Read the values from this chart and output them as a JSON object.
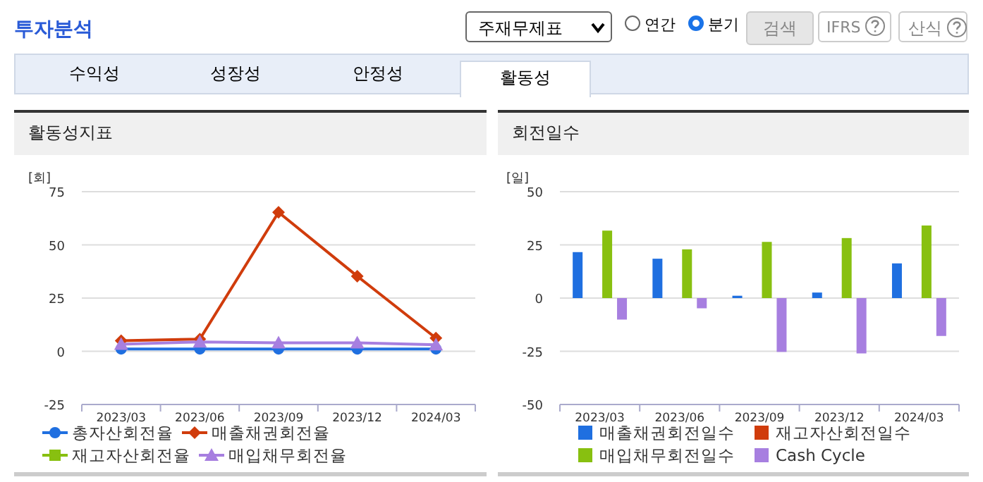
{
  "chart_data": [
    {
      "type": "line",
      "title": "활동성지표",
      "ylabel": "[회]",
      "annotations": [
        "투자분석",
        "주재무제표",
        "연간",
        "분기",
        "검색",
        "IFRS",
        "산식",
        "수익성",
        "성장성",
        "안정성",
        "활동성"
      ],
      "categories": [
        "2023/03",
        "2023/06",
        "2023/09",
        "2023/12",
        "2024/03"
      ],
      "ylim": [
        -25,
        75
      ],
      "yticks": [
        -25,
        0,
        25,
        50,
        75
      ],
      "grid": "y",
      "legend": "bottom",
      "series": [
        {
          "name": "총자산회전율",
          "color": "#1f6fe0",
          "marker": "circle",
          "values": [
            1.1,
            1.1,
            1.1,
            1.1,
            1.1
          ]
        },
        {
          "name": "매출채권회전율",
          "color": "#d03c0c",
          "marker": "diamond",
          "values": [
            5,
            5.7,
            65.3,
            35.3,
            6.2
          ]
        },
        {
          "name": "재고자산회전율",
          "color": "#88c010",
          "marker": "square",
          "values": [
            null,
            null,
            null,
            null,
            null
          ]
        },
        {
          "name": "매입채무회전율",
          "color": "#a77fe0",
          "marker": "triangle",
          "values": [
            3.3,
            4.4,
            4.0,
            4.0,
            3.1
          ]
        }
      ]
    },
    {
      "type": "bar",
      "title": "회전일수",
      "ylabel": "[일]",
      "categories": [
        "2023/03",
        "2023/06",
        "2023/09",
        "2023/12",
        "2024/03"
      ],
      "ylim": [
        -50,
        50
      ],
      "yticks": [
        -50,
        -25,
        0,
        25,
        50
      ],
      "grid": "y",
      "legend": "bottom",
      "series": [
        {
          "name": "매출채권회전일수",
          "color": "#1f6fe0",
          "values": [
            21.6,
            18.5,
            1.1,
            2.6,
            16.3
          ]
        },
        {
          "name": "재고자산회전일수",
          "color": "#d03c0c",
          "values": [
            null,
            null,
            null,
            null,
            null
          ]
        },
        {
          "name": "매입채무회전일수",
          "color": "#88c010",
          "values": [
            31.7,
            22.9,
            26.4,
            28.2,
            34.1
          ]
        },
        {
          "name": "Cash Cycle",
          "color": "#a77fe0",
          "values": [
            -10.1,
            -4.8,
            -25.3,
            -26.0,
            -17.8
          ]
        }
      ]
    }
  ]
}
